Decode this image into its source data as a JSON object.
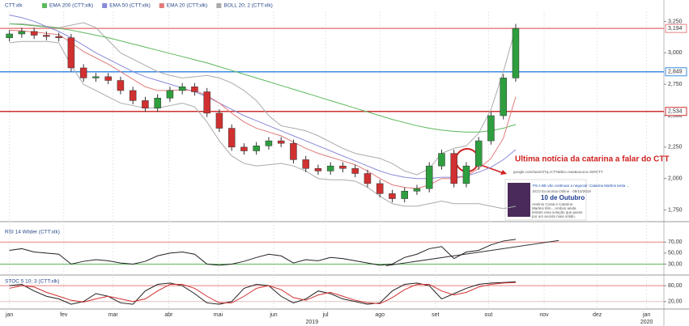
{
  "chart_data": [
    {
      "type": "candlestick",
      "name": "CTT:xlk",
      "x": [
        0,
        1,
        2,
        3,
        4,
        5,
        6,
        7,
        8,
        9,
        10,
        11,
        12,
        13,
        14,
        15,
        16,
        17,
        18,
        19,
        20,
        21,
        22,
        23,
        24,
        25,
        26,
        27,
        28,
        29,
        30,
        31,
        32,
        33,
        34,
        35,
        36,
        37,
        38,
        39,
        40,
        41
      ],
      "open": [
        3120,
        3150,
        3170,
        3140,
        3130,
        3120,
        2880,
        2800,
        2810,
        2780,
        2700,
        2620,
        2560,
        2640,
        2700,
        2730,
        2690,
        2520,
        2400,
        2250,
        2220,
        2260,
        2300,
        2280,
        2150,
        2080,
        2060,
        2100,
        2080,
        2040,
        1960,
        1880,
        1840,
        1900,
        1920,
        2100,
        2200,
        1960,
        2100,
        2300,
        2500,
        2800
      ],
      "high": [
        3180,
        3200,
        3200,
        3170,
        3160,
        3150,
        2910,
        2840,
        2840,
        2810,
        2730,
        2650,
        2670,
        2730,
        2760,
        2760,
        2720,
        2550,
        2430,
        2280,
        2290,
        2330,
        2330,
        2310,
        2180,
        2110,
        2130,
        2130,
        2110,
        2070,
        1990,
        1910,
        1930,
        1950,
        2130,
        2230,
        2230,
        2130,
        2330,
        2530,
        2830,
        3230
      ],
      "low": [
        3090,
        3120,
        3110,
        3100,
        3090,
        2850,
        2770,
        2770,
        2750,
        2670,
        2590,
        2530,
        2530,
        2610,
        2670,
        2660,
        2490,
        2370,
        2220,
        2190,
        2190,
        2230,
        2250,
        2120,
        2050,
        2030,
        2030,
        2050,
        2010,
        1930,
        1850,
        1810,
        1810,
        1870,
        1890,
        2070,
        1930,
        1930,
        2070,
        2270,
        2470,
        2770
      ],
      "close": [
        3150,
        3170,
        3140,
        3130,
        3120,
        2880,
        2800,
        2810,
        2780,
        2700,
        2620,
        2560,
        2640,
        2700,
        2730,
        2690,
        2520,
        2400,
        2250,
        2220,
        2260,
        2300,
        2280,
        2150,
        2080,
        2060,
        2100,
        2080,
        2040,
        1960,
        1880,
        1840,
        1900,
        1920,
        2100,
        2200,
        1960,
        2100,
        2300,
        2500,
        2800,
        3194
      ],
      "up_color": "#2e9e3e",
      "down_color": "#d03030",
      "series": [
        {
          "name": "EMA 200 (CTT:xlk)",
          "color": "#5cb85c",
          "values": [
            3230,
            3225,
            3215,
            3205,
            3195,
            3180,
            3160,
            3140,
            3120,
            3095,
            3070,
            3045,
            3020,
            2995,
            2970,
            2945,
            2920,
            2890,
            2860,
            2830,
            2800,
            2770,
            2740,
            2710,
            2680,
            2650,
            2620,
            2590,
            2560,
            2530,
            2500,
            2470,
            2445,
            2420,
            2400,
            2385,
            2375,
            2370,
            2370,
            2380,
            2400,
            2430
          ]
        },
        {
          "name": "EMA 50 (CTT:xlk)",
          "color": "#8a8ad8",
          "values": [
            3300,
            3280,
            3250,
            3210,
            3170,
            3120,
            3060,
            3000,
            2950,
            2900,
            2850,
            2810,
            2780,
            2750,
            2720,
            2690,
            2650,
            2600,
            2550,
            2500,
            2460,
            2420,
            2380,
            2340,
            2300,
            2260,
            2220,
            2180,
            2140,
            2100,
            2060,
            2030,
            2010,
            2000,
            2000,
            2010,
            2010,
            2020,
            2050,
            2090,
            2150,
            2230
          ]
        },
        {
          "name": "EMA 20 (CTT:xlk)",
          "color": "#e07a7a",
          "values": [
            3180,
            3175,
            3165,
            3155,
            3145,
            3080,
            3010,
            2960,
            2910,
            2850,
            2790,
            2730,
            2700,
            2700,
            2705,
            2700,
            2660,
            2600,
            2520,
            2450,
            2400,
            2370,
            2340,
            2290,
            2240,
            2200,
            2170,
            2140,
            2110,
            2060,
            2000,
            1950,
            1930,
            1920,
            1950,
            2000,
            2000,
            2020,
            2080,
            2160,
            2320,
            2650
          ]
        }
      ],
      "bands": {
        "name": "BOLL 20; 2 (CTT:xlk)",
        "color": "#aaaaaa",
        "upper": [
          3230,
          3230,
          3220,
          3210,
          3200,
          3220,
          3240,
          3200,
          3100,
          3000,
          2950,
          2900,
          2850,
          2820,
          2800,
          2810,
          2820,
          2800,
          2760,
          2700,
          2620,
          2500,
          2420,
          2400,
          2380,
          2340,
          2290,
          2240,
          2200,
          2180,
          2160,
          2120,
          2060,
          2030,
          2080,
          2200,
          2240,
          2260,
          2360,
          2550,
          2850,
          3200
        ],
        "lower": [
          3080,
          3090,
          3090,
          3090,
          3080,
          2900,
          2750,
          2700,
          2650,
          2600,
          2580,
          2560,
          2560,
          2580,
          2600,
          2570,
          2450,
          2300,
          2180,
          2120,
          2100,
          2110,
          2120,
          2100,
          2060,
          2000,
          1990,
          1990,
          1980,
          1930,
          1860,
          1800,
          1780,
          1780,
          1800,
          1820,
          1800,
          1800,
          1800,
          1780,
          1760,
          1780
        ]
      },
      "xlim": [
        -0.5,
        53
      ],
      "ylim": [
        1670,
        3330
      ],
      "yticks": [
        {
          "value": 3250,
          "label": "3,250"
        },
        {
          "value": 3000,
          "label": "3,000"
        },
        {
          "value": 2750,
          "label": "2,750"
        },
        {
          "value": 2500,
          "label": "2,500"
        },
        {
          "value": 2250,
          "label": "2,250"
        },
        {
          "value": 2000,
          "label": "2,000"
        },
        {
          "value": 1750,
          "label": "1,750"
        }
      ],
      "levels": [
        {
          "value": 3194,
          "label": "3,194",
          "color": "#e88080"
        },
        {
          "value": 2849,
          "label": "2,849",
          "color": "#3a8ee6"
        },
        {
          "value": 2534,
          "label": "2,534",
          "color": "#d03030"
        }
      ],
      "annotation": "Ultima notícia da catarina a falar do CTT",
      "news": {
        "url": "google.com/search?q=CTT&tbm=nws&source=lnt#CTT",
        "headline": "PS e BE vão continuar a negociar: Catarina Martins tenta ...",
        "source": "ECO Economia Online · 09/10/2019",
        "date": "10 de Outubro",
        "snippet": "António Costa e Catarina Martins têm... Ambos ainda tentam uma solução que passe por um acordo mais sólido."
      }
    },
    {
      "type": "line",
      "title": "RSI 14 Wilder (CTT:xlk)",
      "x": [
        0,
        1,
        2,
        3,
        4,
        5,
        6,
        7,
        8,
        9,
        10,
        11,
        12,
        13,
        14,
        15,
        16,
        17,
        18,
        19,
        20,
        21,
        22,
        23,
        24,
        25,
        26,
        27,
        28,
        29,
        30,
        31,
        32,
        33,
        34,
        35,
        36,
        37,
        38,
        39,
        40,
        41
      ],
      "values": [
        55,
        58,
        52,
        50,
        48,
        30,
        35,
        38,
        36,
        32,
        30,
        35,
        45,
        50,
        52,
        48,
        30,
        28,
        30,
        35,
        42,
        48,
        45,
        32,
        38,
        36,
        42,
        40,
        36,
        32,
        28,
        30,
        42,
        48,
        58,
        62,
        40,
        52,
        55,
        65,
        72,
        75
      ],
      "color": "#222222",
      "trendline": {
        "x": [
          30.5,
          44.5
        ],
        "values": [
          27,
          73
        ],
        "color": "#333333"
      },
      "xlim": [
        -0.5,
        53
      ],
      "ylim": [
        13,
        94
      ],
      "yticks": [
        {
          "value": 70,
          "label": "70,00"
        },
        {
          "value": 50,
          "label": "50,00"
        },
        {
          "value": 30,
          "label": "30,00"
        }
      ],
      "levels": [
        {
          "value": 70,
          "color": "#e88080"
        },
        {
          "value": 30,
          "color": "#5cb85c"
        }
      ]
    },
    {
      "type": "line",
      "title": "STOC 5 10; 3 (CTT:xlk)",
      "x": [
        0,
        1,
        2,
        3,
        4,
        5,
        6,
        7,
        8,
        9,
        10,
        11,
        12,
        13,
        14,
        15,
        16,
        17,
        18,
        19,
        20,
        21,
        22,
        23,
        24,
        25,
        26,
        27,
        28,
        29,
        30,
        31,
        32,
        33,
        34,
        35,
        36,
        37,
        38,
        39,
        40,
        41
      ],
      "series": [
        {
          "color": "#222222",
          "values": [
            80,
            85,
            60,
            40,
            30,
            10,
            20,
            50,
            40,
            15,
            10,
            60,
            85,
            90,
            80,
            50,
            15,
            10,
            20,
            70,
            85,
            80,
            40,
            15,
            30,
            60,
            50,
            30,
            20,
            10,
            15,
            60,
            85,
            90,
            80,
            30,
            50,
            70,
            85,
            90,
            92,
            95
          ]
        },
        {
          "color": "#d03030",
          "values": [
            70,
            80,
            75,
            55,
            40,
            25,
            18,
            30,
            40,
            30,
            20,
            30,
            60,
            85,
            85,
            70,
            40,
            15,
            15,
            40,
            70,
            80,
            65,
            35,
            25,
            45,
            55,
            40,
            25,
            15,
            12,
            35,
            65,
            85,
            85,
            60,
            45,
            55,
            75,
            85,
            90,
            92
          ]
        }
      ],
      "xlim": [
        -0.5,
        53
      ],
      "ylim": [
        -2,
        108
      ],
      "yticks": [
        {
          "value": 80,
          "label": "80,00"
        },
        {
          "value": 20,
          "label": "20,00"
        }
      ],
      "levels": [
        {
          "value": 80,
          "color": "#e88080"
        },
        {
          "value": 20,
          "color": "#e0c0c0"
        }
      ],
      "xticks": [
        {
          "value": 0,
          "label": "jan"
        },
        {
          "value": 4.4,
          "label": "fev"
        },
        {
          "value": 8.4,
          "label": "mar"
        },
        {
          "value": 12.9,
          "label": "abr"
        },
        {
          "value": 16.9,
          "label": "mai"
        },
        {
          "value": 21.4,
          "label": "jun"
        },
        {
          "value": 25.6,
          "label": "jul"
        },
        {
          "value": 30,
          "label": "ago"
        },
        {
          "value": 34.5,
          "label": "set"
        },
        {
          "value": 38.8,
          "label": "out"
        },
        {
          "value": 43.3,
          "label": "nov"
        },
        {
          "value": 47.6,
          "label": "dez"
        },
        {
          "value": 51.6,
          "label": "jan"
        }
      ],
      "year_ticks": [
        {
          "value": 24.5,
          "label": "2019"
        },
        {
          "value": 51.6,
          "label": "2020"
        }
      ]
    }
  ]
}
